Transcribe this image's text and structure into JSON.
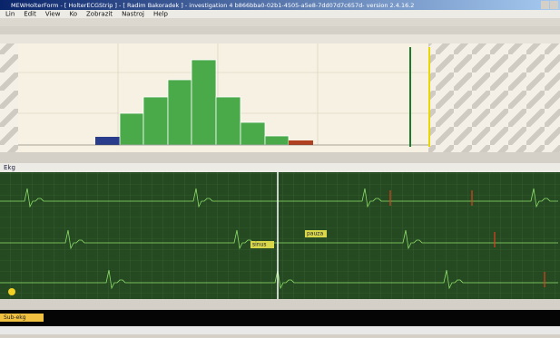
{
  "window": {
    "title": "MEWHolterForm - [ HolterECGStrip ] - [ Radim Bakoradek ] - investigation 4 b866bba0-02b1-4505-a5e8-7dd07d7c657d- version 2.4.16.2"
  },
  "menu": [
    "Lin",
    "Edit",
    "View",
    "Ko",
    "Zobrazit",
    "Nastroj",
    "Help"
  ],
  "ecg": {
    "strip_label": "Ekg",
    "markers": [
      "sinus",
      "pauza"
    ]
  },
  "timeline": {
    "label": "Sub-ekg"
  }
}
